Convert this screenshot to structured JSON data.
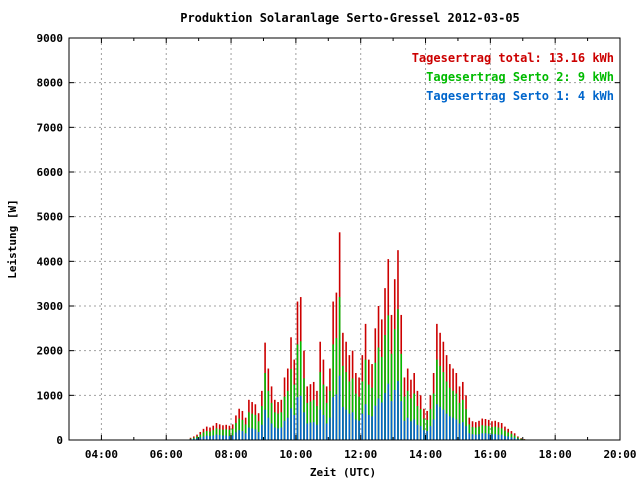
{
  "chart_data": {
    "type": "bar",
    "title": "Produktion Solaranlage Serto-Gressel 2012-03-05",
    "xlabel": "Zeit (UTC)",
    "ylabel": "Leistung [W]",
    "xlim": [
      3,
      20
    ],
    "ylim": [
      0,
      9000
    ],
    "x_ticks": [
      "04:00",
      "06:00",
      "08:00",
      "10:00",
      "12:00",
      "14:00",
      "16:00",
      "18:00",
      "20:00"
    ],
    "y_ticks": [
      "0",
      "1000",
      "2000",
      "3000",
      "4000",
      "5000",
      "6000",
      "7000",
      "8000",
      "9000"
    ],
    "grid": true,
    "legend_position": "top-right",
    "legend": [
      {
        "text": "Tagesertrag total: 13.16 kWh",
        "color": "#cc0000"
      },
      {
        "text": "Tagesertrag Serto 2: 9 kWh",
        "color": "#00bb00"
      },
      {
        "text": "Tagesertrag Serto 1: 4 kWh",
        "color": "#0066cc"
      }
    ],
    "series": [
      {
        "name": "total",
        "color": "#cc0000"
      },
      {
        "name": "Serto 2",
        "color": "#00bb00"
      },
      {
        "name": "Serto 1",
        "color": "#0066cc"
      }
    ],
    "x_hours": [
      6.75,
      6.85,
      6.95,
      7.05,
      7.15,
      7.25,
      7.35,
      7.45,
      7.55,
      7.65,
      7.75,
      7.85,
      7.95,
      8.05,
      8.15,
      8.25,
      8.35,
      8.45,
      8.55,
      8.65,
      8.75,
      8.85,
      8.95,
      9.05,
      9.15,
      9.25,
      9.35,
      9.45,
      9.55,
      9.65,
      9.75,
      9.85,
      9.95,
      10.05,
      10.15,
      10.25,
      10.35,
      10.45,
      10.55,
      10.65,
      10.75,
      10.85,
      10.95,
      11.05,
      11.15,
      11.25,
      11.35,
      11.45,
      11.55,
      11.65,
      11.75,
      11.85,
      11.95,
      12.05,
      12.15,
      12.25,
      12.35,
      12.45,
      12.55,
      12.65,
      12.75,
      12.85,
      12.95,
      13.05,
      13.15,
      13.25,
      13.35,
      13.45,
      13.55,
      13.65,
      13.75,
      13.85,
      13.95,
      14.05,
      14.15,
      14.25,
      14.35,
      14.45,
      14.55,
      14.65,
      14.75,
      14.85,
      14.95,
      15.05,
      15.15,
      15.25,
      15.35,
      15.45,
      15.55,
      15.65,
      15.75,
      15.85,
      15.95,
      16.05,
      16.15,
      16.25,
      16.35,
      16.45,
      16.55,
      16.65,
      16.75,
      16.85,
      16.95,
      17.05
    ],
    "total": [
      50,
      80,
      120,
      180,
      250,
      300,
      280,
      320,
      380,
      350,
      330,
      340,
      320,
      350,
      550,
      700,
      650,
      500,
      900,
      850,
      800,
      600,
      1100,
      2180,
      1600,
      1200,
      900,
      850,
      900,
      1400,
      1600,
      2300,
      1800,
      3100,
      3200,
      2000,
      1200,
      1250,
      1300,
      1100,
      2200,
      1800,
      1200,
      1600,
      3100,
      3300,
      4650,
      2400,
      2200,
      1900,
      2000,
      1500,
      1400,
      1900,
      2600,
      1800,
      1700,
      2500,
      3000,
      2700,
      3400,
      4050,
      2800,
      3600,
      4250,
      2800,
      1400,
      1600,
      1350,
      1500,
      1100,
      1000,
      700,
      650,
      1000,
      1500,
      2600,
      2400,
      2200,
      1900,
      1700,
      1600,
      1500,
      1200,
      1300,
      1000,
      500,
      420,
      400,
      430,
      480,
      470,
      450,
      420,
      430,
      400,
      380,
      300,
      250,
      200,
      150,
      80,
      40,
      20
    ],
    "serto2": [
      30,
      50,
      80,
      120,
      170,
      200,
      190,
      220,
      260,
      240,
      230,
      240,
      230,
      250,
      380,
      480,
      450,
      350,
      620,
      590,
      560,
      420,
      760,
      1500,
      1100,
      830,
      620,
      590,
      620,
      970,
      1100,
      1590,
      1240,
      2140,
      2210,
      1380,
      830,
      860,
      900,
      760,
      1520,
      1240,
      830,
      1100,
      2140,
      2280,
      3200,
      1660,
      1520,
      1310,
      1380,
      1040,
      970,
      1310,
      1800,
      1240,
      1170,
      1730,
      2070,
      1860,
      2350,
      2790,
      1930,
      2480,
      2930,
      1930,
      970,
      1100,
      930,
      1040,
      760,
      690,
      480,
      450,
      690,
      1040,
      1800,
      1660,
      1520,
      1310,
      1170,
      1100,
      1040,
      830,
      900,
      690,
      350,
      290,
      280,
      300,
      330,
      320,
      310,
      290,
      300,
      280,
      260,
      210,
      170,
      140,
      100,
      55,
      28,
      14
    ],
    "serto1": [
      20,
      30,
      40,
      60,
      80,
      100,
      90,
      100,
      120,
      110,
      100,
      100,
      90,
      100,
      170,
      220,
      200,
      150,
      280,
      260,
      240,
      180,
      340,
      680,
      500,
      370,
      280,
      260,
      280,
      430,
      500,
      710,
      560,
      960,
      990,
      620,
      370,
      390,
      400,
      340,
      680,
      560,
      370,
      500,
      960,
      1020,
      1440,
      740,
      680,
      590,
      620,
      460,
      430,
      590,
      800,
      560,
      530,
      770,
      930,
      840,
      1050,
      1260,
      870,
      1120,
      1320,
      870,
      430,
      500,
      420,
      460,
      340,
      310,
      220,
      200,
      310,
      460,
      800,
      740,
      680,
      590,
      530,
      500,
      460,
      370,
      400,
      310,
      150,
      130,
      120,
      130,
      150,
      150,
      140,
      130,
      130,
      120,
      120,
      90,
      80,
      60,
      50,
      25,
      12,
      6
    ]
  }
}
